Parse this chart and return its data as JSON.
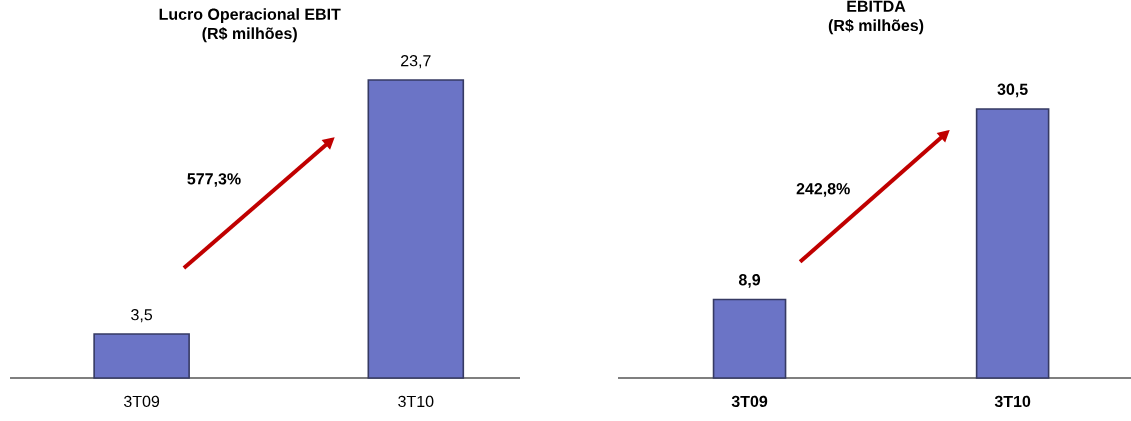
{
  "chart_data": [
    {
      "type": "bar",
      "title": "Lucro Operacional EBIT",
      "subtitle": "(R$ milhões)",
      "categories": [
        "3T09",
        "3T10"
      ],
      "values": [
        3.5,
        23.7
      ],
      "value_labels": [
        "3,5",
        "23,7"
      ],
      "color": "#6b74c6",
      "annotations": [
        "577,3%"
      ]
    },
    {
      "type": "bar",
      "title": "EBITDA",
      "subtitle": "(R$ milhões)",
      "categories": [
        "3T09",
        "3T10"
      ],
      "values": [
        8.9,
        30.5
      ],
      "value_labels": [
        "8,9",
        "30,5"
      ],
      "color": "#6b74c6",
      "annotations": [
        "242,8%"
      ]
    }
  ]
}
